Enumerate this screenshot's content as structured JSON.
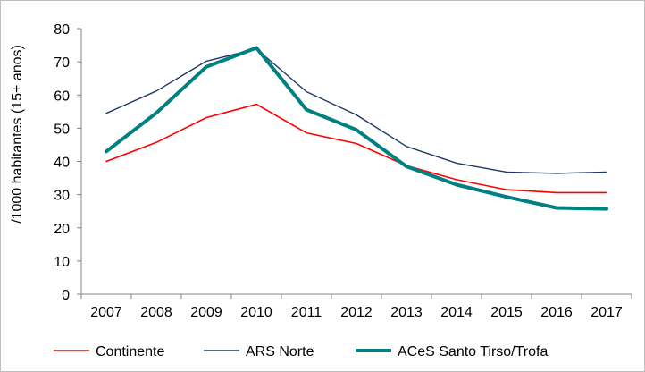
{
  "chart_data": {
    "type": "line",
    "title": "",
    "xlabel": "",
    "ylabel": "/1000 habitantes (15+ anos)",
    "ylim": [
      0,
      80
    ],
    "yticks": [
      0,
      10,
      20,
      30,
      40,
      50,
      60,
      70,
      80
    ],
    "categories": [
      "2007",
      "2008",
      "2009",
      "2010",
      "2011",
      "2012",
      "2013",
      "2014",
      "2015",
      "2016",
      "2017"
    ],
    "grid": false,
    "legend_position": "bottom",
    "series": [
      {
        "name": "Continente",
        "color": "#ff0000",
        "values": [
          40.0,
          45.7,
          53.2,
          57.2,
          48.6,
          45.4,
          38.7,
          34.5,
          31.5,
          30.6,
          30.6
        ]
      },
      {
        "name": "ARS Norte",
        "color": "#1f3864",
        "values": [
          54.5,
          61.2,
          70.2,
          73.9,
          61.0,
          54.0,
          44.5,
          39.5,
          36.8,
          36.4,
          36.8
        ]
      },
      {
        "name": "ACeS Santo Tirso/Trofa",
        "color": "#008080",
        "values": [
          43.0,
          54.6,
          68.5,
          74.2,
          55.6,
          49.5,
          38.5,
          33.0,
          29.3,
          26.0,
          25.7
        ]
      }
    ]
  }
}
